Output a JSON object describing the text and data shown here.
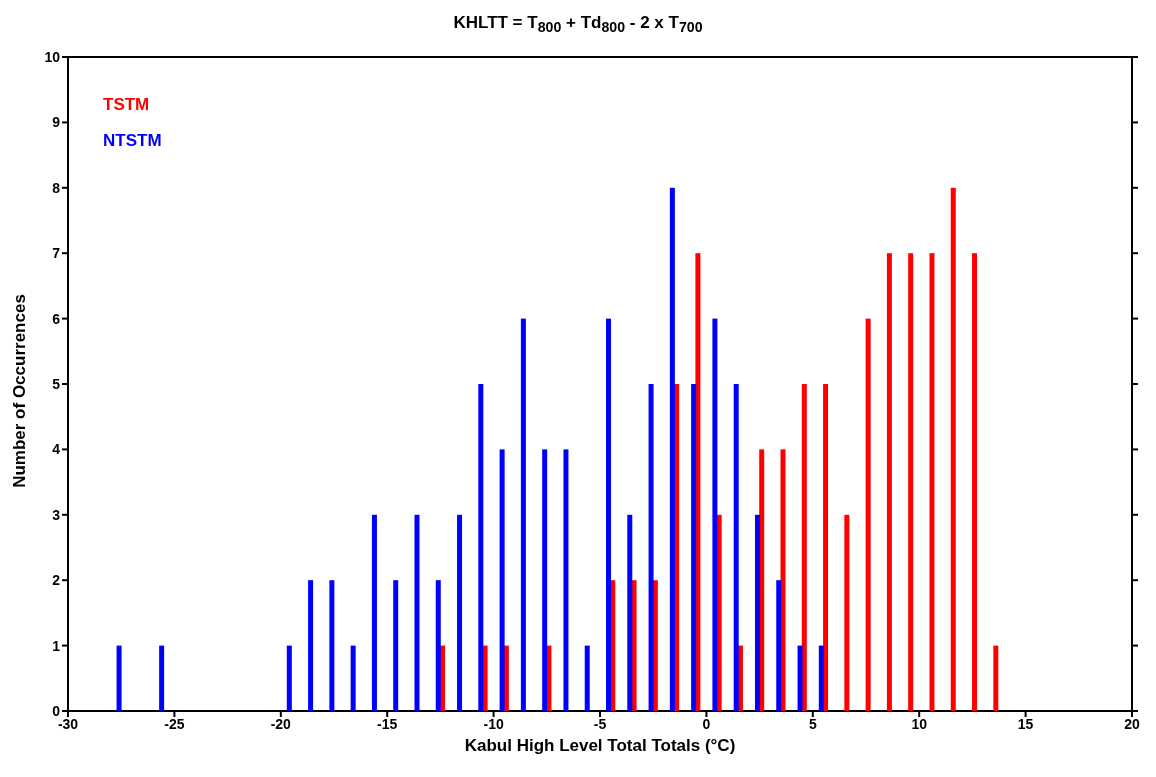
{
  "chart_data": {
    "type": "bar",
    "title": "KHLTT = T$_{800}$ + Td$_{800}$ - 2 x T$_{700}$",
    "xlabel": "Kabul High Level Total Totals (°C)",
    "ylabel": "Number of Occurrences",
    "legend": "top left",
    "xlim": [
      -30,
      20
    ],
    "xticks": [
      -30,
      -25,
      -20,
      -15,
      -10,
      -5,
      0,
      5,
      10,
      15,
      20
    ],
    "ylim": [
      0,
      10
    ],
    "yticks": [
      0,
      1,
      2,
      3,
      4,
      5,
      6,
      7,
      8,
      9,
      10
    ],
    "series": [
      {
        "name": "TSTM",
        "color": "#ff0000",
        "x": [
          -12.5,
          -10.5,
          -9.5,
          -7.5,
          -4.5,
          -3.5,
          -2.5,
          -1.5,
          -0.5,
          0.5,
          1.5,
          2.5,
          3.5,
          4.5,
          5.5,
          6.5,
          7.5,
          8.5,
          9.5,
          10.5,
          11.5,
          12.5,
          13.5
        ],
        "values": [
          1,
          1,
          1,
          1,
          2,
          2,
          2,
          5,
          7,
          3,
          1,
          4,
          4,
          5,
          5,
          3,
          6,
          7,
          7,
          7,
          8,
          7,
          1
        ]
      },
      {
        "name": "NTSTM",
        "color": "#0000ff",
        "x": [
          -27.5,
          -25.5,
          -19.5,
          -18.5,
          -17.5,
          -16.5,
          -15.5,
          -14.5,
          -13.5,
          -12.5,
          -11.5,
          -10.5,
          -9.5,
          -8.5,
          -7.5,
          -6.5,
          -5.5,
          -4.5,
          -3.5,
          -2.5,
          -1.5,
          -0.5,
          0.5,
          1.5,
          2.5,
          3.5,
          4.5,
          5.5
        ],
        "values": [
          1,
          1,
          1,
          2,
          2,
          1,
          3,
          2,
          3,
          2,
          3,
          5,
          4,
          6,
          4,
          4,
          1,
          6,
          3,
          5,
          8,
          5,
          6,
          5,
          3,
          2,
          1,
          1
        ]
      }
    ]
  }
}
